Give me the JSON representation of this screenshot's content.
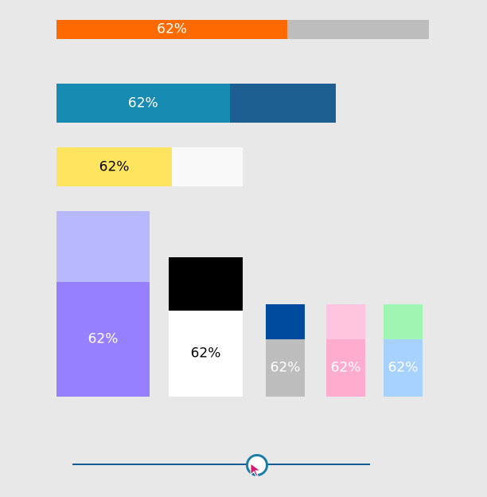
{
  "bars": [
    {
      "label": "62%",
      "value": 0.62,
      "fill_color": "#ff6a00",
      "track_color": "#bdbdbd",
      "text_color": "#ffffff"
    },
    {
      "label": "62%",
      "value": 0.62,
      "fill_color": "#178bb1",
      "track_color": "#1e5f91",
      "text_color": "#ffffff"
    },
    {
      "label": "62%",
      "value": 0.62,
      "fill_color": "#ffe460",
      "track_color": "#f9f9f9",
      "text_color": "#000000"
    },
    {
      "label": "62%",
      "value": 0.62,
      "fill_color": "#9780ff",
      "track_color": "#b8b8ff",
      "text_color": "#ffffff"
    },
    {
      "label": "62%",
      "value": 0.62,
      "fill_color": "#ffffff",
      "track_color": "#000000",
      "text_color": "#000000"
    },
    {
      "label": "62%",
      "value": 0.62,
      "fill_color": "#bdbdbd",
      "track_color": "#004b9e",
      "text_color": "#ffffff"
    },
    {
      "label": "62%",
      "value": 0.62,
      "fill_color": "#ffaccf",
      "track_color": "#ffc4de",
      "text_color": "#ffffff"
    },
    {
      "label": "62%",
      "value": 0.62,
      "fill_color": "#a7d1ff",
      "track_color": "#a1f5b2",
      "text_color": "#ffffff"
    }
  ],
  "slider": {
    "value": 0.62,
    "track_color": "#0f5b92",
    "thumb_border_color": "#1a7ea6"
  },
  "cursor": {
    "icon": "mouse-pointer-icon",
    "color": "#d21a71"
  }
}
